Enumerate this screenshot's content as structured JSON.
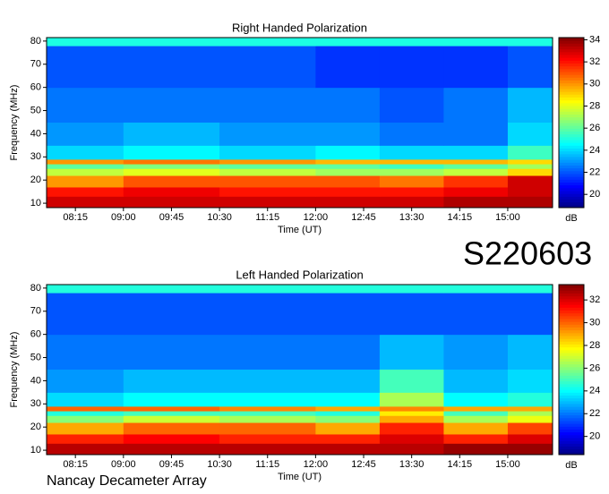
{
  "chart_data": [
    {
      "type": "heatmap",
      "title": "Right Handed Polarization",
      "x_label": "Time (UT)",
      "y_label": "Frequency (MHz)",
      "colorbar_label": "dB",
      "colormap": "jet",
      "xlim": [
        7.8,
        15.7
      ],
      "xticks": [
        {
          "value": 8.25,
          "label": "08:15"
        },
        {
          "value": 9,
          "label": "09:00"
        },
        {
          "value": 9.75,
          "label": "09:45"
        },
        {
          "value": 10.5,
          "label": "10:30"
        },
        {
          "value": 11.25,
          "label": "11:15"
        },
        {
          "value": 12,
          "label": "12:00"
        },
        {
          "value": 12.75,
          "label": "12:45"
        },
        {
          "value": 13.5,
          "label": "13:30"
        },
        {
          "value": 14.25,
          "label": "14:15"
        },
        {
          "value": 15,
          "label": "15:00"
        }
      ],
      "ylim": [
        8.1,
        81.5
      ],
      "yticks": [
        10,
        20,
        30,
        40,
        50,
        60,
        70,
        80
      ],
      "x_bins": [
        7.8,
        9,
        10.5,
        12,
        13,
        14,
        15,
        15.7
      ],
      "y_bins": [
        8.1,
        13,
        17,
        22,
        25,
        27,
        29,
        35,
        45,
        60,
        78,
        81.5
      ],
      "values": [
        [
          33,
          33,
          33,
          33,
          33,
          33.5,
          33.5
        ],
        [
          32,
          32.5,
          32,
          32,
          32,
          32.5,
          33
        ],
        [
          30,
          31,
          31,
          31,
          30.5,
          31.5,
          33
        ],
        [
          27.5,
          28,
          27.5,
          27,
          27,
          27.5,
          29
        ],
        [
          26,
          26.5,
          26,
          26,
          25.5,
          26,
          27
        ],
        [
          30,
          30.5,
          30,
          29.5,
          29.5,
          29.5,
          29
        ],
        [
          24,
          24.5,
          24,
          24.5,
          24,
          24,
          25.5
        ],
        [
          23,
          23.5,
          23,
          23,
          22.5,
          22.5,
          24
        ],
        [
          22.5,
          22.5,
          22.5,
          22.5,
          22,
          22.5,
          23.5
        ],
        [
          22,
          22,
          22,
          21.5,
          21.5,
          21.5,
          22
        ],
        [
          25,
          25,
          25,
          25,
          25,
          25,
          25
        ]
      ],
      "clim": [
        18.8,
        34.2
      ],
      "cticks": [
        20,
        22,
        24,
        26,
        28,
        30,
        32,
        34
      ]
    },
    {
      "type": "heatmap",
      "title": "Left Handed Polarization",
      "x_label": "Time (UT)",
      "y_label": "Frequency (MHz)",
      "colorbar_label": "dB",
      "colormap": "jet",
      "xlim": [
        7.8,
        15.7
      ],
      "xticks": [
        {
          "value": 8.25,
          "label": "08:15"
        },
        {
          "value": 9,
          "label": "09:00"
        },
        {
          "value": 9.75,
          "label": "09:45"
        },
        {
          "value": 10.5,
          "label": "10:30"
        },
        {
          "value": 11.25,
          "label": "11:15"
        },
        {
          "value": 12,
          "label": "12:00"
        },
        {
          "value": 12.75,
          "label": "12:45"
        },
        {
          "value": 13.5,
          "label": "13:30"
        },
        {
          "value": 14.25,
          "label": "14:15"
        },
        {
          "value": 15,
          "label": "15:00"
        }
      ],
      "ylim": [
        8.1,
        81.5
      ],
      "yticks": [
        10,
        20,
        30,
        40,
        50,
        60,
        70,
        80
      ],
      "x_bins": [
        7.8,
        9,
        10.5,
        12,
        13,
        14,
        15,
        15.7
      ],
      "y_bins": [
        8.1,
        13,
        17,
        22,
        25,
        27,
        29,
        35,
        45,
        60,
        78,
        81.5
      ],
      "values": [
        [
          32.5,
          32.5,
          32.5,
          32.5,
          32.5,
          33,
          33
        ],
        [
          31,
          31.5,
          31,
          31,
          32,
          31,
          32
        ],
        [
          29,
          30,
          30,
          29,
          31,
          29,
          30.5
        ],
        [
          26,
          27,
          26.5,
          26,
          29,
          26.5,
          27.5
        ],
        [
          24.5,
          25,
          25,
          24.5,
          28,
          25,
          26.5
        ],
        [
          30,
          30,
          29.5,
          29,
          29.5,
          29,
          29
        ],
        [
          23.5,
          24,
          24,
          24,
          26.5,
          24,
          24.5
        ],
        [
          22.5,
          23,
          23,
          23,
          25,
          23,
          23.5
        ],
        [
          22,
          22,
          22,
          22,
          23,
          22.5,
          23
        ],
        [
          21.5,
          21.5,
          21.5,
          21.5,
          21.5,
          21.5,
          21.5
        ],
        [
          24.5,
          24.5,
          24.5,
          24.5,
          24.5,
          24.5,
          24.5
        ]
      ],
      "clim": [
        18.4,
        33.35
      ],
      "cticks": [
        20,
        22,
        24,
        26,
        28,
        30,
        32
      ]
    }
  ],
  "label": "S220603",
  "footer": "Nancay Decameter Array"
}
